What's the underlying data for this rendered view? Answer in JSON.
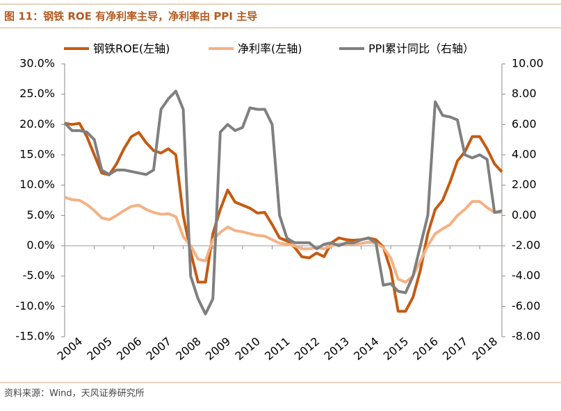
{
  "header": {
    "title": "图 11：钢铁 ROE 有净利率主导，净利率由 PPI 主导"
  },
  "footer": {
    "source": "资料来源：Wind，天风证券研究所"
  },
  "chart_data": {
    "type": "line",
    "x": [
      2004,
      2004.25,
      2004.5,
      2004.75,
      2005,
      2005.25,
      2005.5,
      2005.75,
      2006,
      2006.25,
      2006.5,
      2006.75,
      2007,
      2007.25,
      2007.5,
      2007.75,
      2008,
      2008.25,
      2008.5,
      2008.75,
      2009,
      2009.25,
      2009.5,
      2009.75,
      2010,
      2010.25,
      2010.5,
      2010.75,
      2011,
      2011.25,
      2011.5,
      2011.75,
      2012,
      2012.25,
      2012.5,
      2012.75,
      2013,
      2013.25,
      2013.5,
      2013.75,
      2014,
      2014.25,
      2014.5,
      2014.75,
      2015,
      2015.25,
      2015.5,
      2015.75,
      2016,
      2016.25,
      2016.5,
      2016.75,
      2017,
      2017.25,
      2017.5,
      2017.75,
      2018,
      2018.25,
      2018.5,
      2018.75
    ],
    "series": [
      {
        "name": "钢铁ROE(左轴)",
        "color": "#c55a11",
        "values": [
          20.2,
          20,
          20.2,
          18,
          15,
          12,
          11.7,
          13.5,
          16,
          18,
          18.7,
          17,
          15.7,
          15.3,
          16,
          15,
          5,
          -1,
          -6,
          -6,
          2,
          6,
          9.2,
          7.2,
          6.7,
          6.2,
          5.4,
          5.5,
          3.5,
          1.3,
          0.8,
          -0.2,
          -1.8,
          -2,
          -1.2,
          -1.8,
          0.5,
          1.3,
          1,
          0.9,
          1,
          1.3,
          1,
          -0.2,
          -4,
          -10.8,
          -10.8,
          -8.5,
          -4,
          2,
          6,
          7.5,
          10.5,
          14,
          15.5,
          18,
          18,
          16,
          13.5,
          12.2
        ]
      },
      {
        "name": "净利率(左轴)",
        "color": "#f4b183",
        "values": [
          8,
          7.6,
          7.5,
          6.8,
          5.8,
          4.6,
          4.3,
          5,
          5.8,
          6.5,
          6.7,
          6,
          5.5,
          5.2,
          5.3,
          4.8,
          1.5,
          0,
          -2.2,
          -2.5,
          1,
          2.2,
          3.1,
          2.5,
          2.3,
          2,
          1.7,
          1.6,
          1,
          0.4,
          0.3,
          0,
          -0.5,
          -0.5,
          -0.3,
          -0.5,
          0,
          0.3,
          0.3,
          0.3,
          0.4,
          0.6,
          0.4,
          -0.3,
          -2,
          -5.5,
          -6,
          -5,
          -2.5,
          0,
          2,
          2.8,
          3.5,
          5,
          6,
          7.3,
          7.3,
          6.3,
          5.5,
          5.5
        ]
      },
      {
        "name": "PPI累计同比（右轴）",
        "color": "#7f7f7f",
        "axis": "y2",
        "values": [
          6.1,
          5.6,
          5.6,
          5.5,
          5,
          3,
          2.7,
          3,
          3,
          2.9,
          2.8,
          2.7,
          3,
          7,
          7.7,
          8.2,
          7,
          -4,
          -5.5,
          -6.5,
          -5.5,
          5.5,
          6,
          5.6,
          5.8,
          7.1,
          7,
          7,
          6,
          0,
          -1.5,
          -1.8,
          -1.8,
          -1.8,
          -2.2,
          -1.9,
          -1.8,
          -2,
          -1.8,
          -1.8,
          -1.6,
          -1.5,
          -1.8,
          -4.6,
          -4.5,
          -5,
          -5.1,
          -4,
          -2,
          0,
          7.5,
          6.6,
          6.5,
          6.3,
          4,
          3.8,
          4,
          3.7,
          0.2,
          0.3
        ]
      }
    ],
    "xlim": [
      2004,
      2018.75
    ],
    "xticks": [
      2004,
      2005,
      2006,
      2007,
      2008,
      2009,
      2010,
      2011,
      2012,
      2013,
      2014,
      2015,
      2016,
      2017,
      2018
    ],
    "ylim": [
      -15,
      30
    ],
    "yticks": [
      {
        "value": 30,
        "label": "30.0%"
      },
      {
        "value": 25,
        "label": "25.0%"
      },
      {
        "value": 20,
        "label": "20.0%"
      },
      {
        "value": 15,
        "label": "15.0%"
      },
      {
        "value": 10,
        "label": "10.0%"
      },
      {
        "value": 5,
        "label": "5.0%"
      },
      {
        "value": 0,
        "label": "0.0%"
      },
      {
        "value": -5,
        "label": "-5.0%"
      },
      {
        "value": -10,
        "label": "-10.0%"
      },
      {
        "value": -15,
        "label": "-15.0%"
      }
    ],
    "y2lim": [
      -8,
      10
    ],
    "y2ticks": [
      {
        "value": 10,
        "label": "10.00"
      },
      {
        "value": 8,
        "label": "8.00"
      },
      {
        "value": 6,
        "label": "6.00"
      },
      {
        "value": 4,
        "label": "4.00"
      },
      {
        "value": 2,
        "label": "2.00"
      },
      {
        "value": 0,
        "label": "0.00"
      },
      {
        "value": -2,
        "label": "-2.00"
      },
      {
        "value": -4,
        "label": "-4.00"
      },
      {
        "value": -6,
        "label": "-6.00"
      },
      {
        "value": -8,
        "label": "-8.00"
      }
    ],
    "legend": "top"
  }
}
